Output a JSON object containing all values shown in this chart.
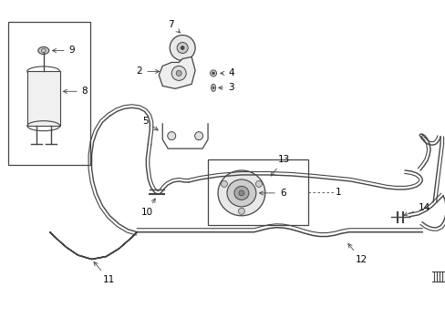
{
  "bg_color": "#ffffff",
  "lc": "#444444",
  "tc": "#000000",
  "fig_w": 4.89,
  "fig_h": 3.6,
  "dpi": 100
}
